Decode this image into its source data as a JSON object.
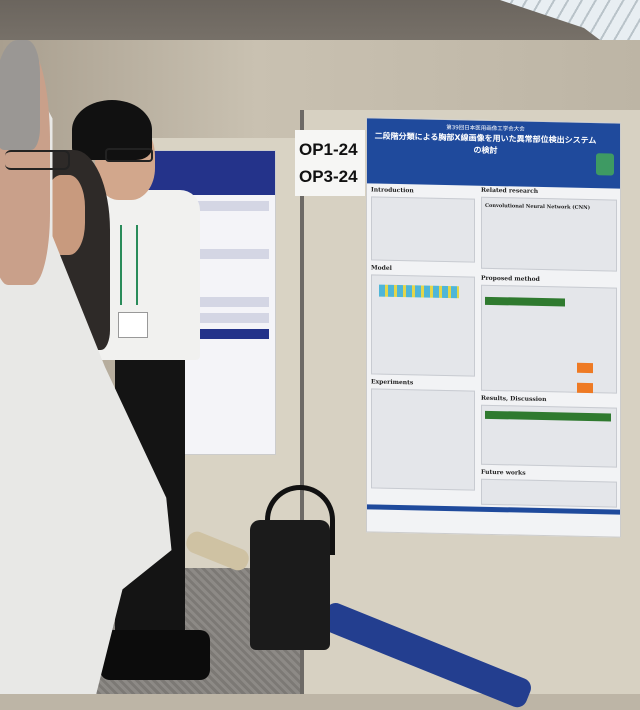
{
  "booth_labels": [
    "OP1-24",
    "OP3-24"
  ],
  "poster": {
    "conference": "第39回日本医用画像工学会大会",
    "title": "二段階分類による胸部X線画像を用いた異常部位検出システムの検討",
    "sections": [
      "Introduction",
      "Related research",
      "Model",
      "Proposed method",
      "Experiments",
      "Results, Discussion",
      "Future works"
    ],
    "related_subtitle": "Convolutional Neural Network (CNN)"
  },
  "colors": {
    "poster_header": "#1f4a9c",
    "shirt": "#f1f1ef",
    "tube": "#233e8f"
  }
}
